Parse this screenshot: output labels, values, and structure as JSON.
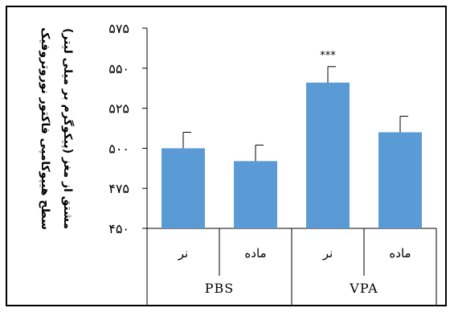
{
  "chart_data": {
    "type": "bar",
    "ylabel_lines": [
      "سطح هیپوکامپی فاکتور نوروتروفیک",
      "مشتق از مغز (پیکوگرم بر میلی لیتر)"
    ],
    "ylim": [
      450,
      575
    ],
    "yticks": [
      450,
      475,
      500,
      525,
      550,
      575
    ],
    "ytick_labels": [
      "۴۵۰",
      "۴۷۵",
      "۵۰۰",
      "۵۲۵",
      "۵۵۰",
      "۵۷۵"
    ],
    "groups": [
      {
        "label": "PBS",
        "categories": [
          "نر",
          "ماده"
        ]
      },
      {
        "label": "VPA",
        "categories": [
          "نر",
          "ماده"
        ]
      }
    ],
    "categories": [
      "نر",
      "ماده",
      "نر",
      "ماده"
    ],
    "values": [
      500,
      492,
      541,
      510
    ],
    "errors": [
      10,
      10,
      10,
      10
    ],
    "annotations": [
      "",
      "",
      "***",
      ""
    ],
    "bar_color": "#5b9bd5",
    "grid": false,
    "legend": "none"
  }
}
